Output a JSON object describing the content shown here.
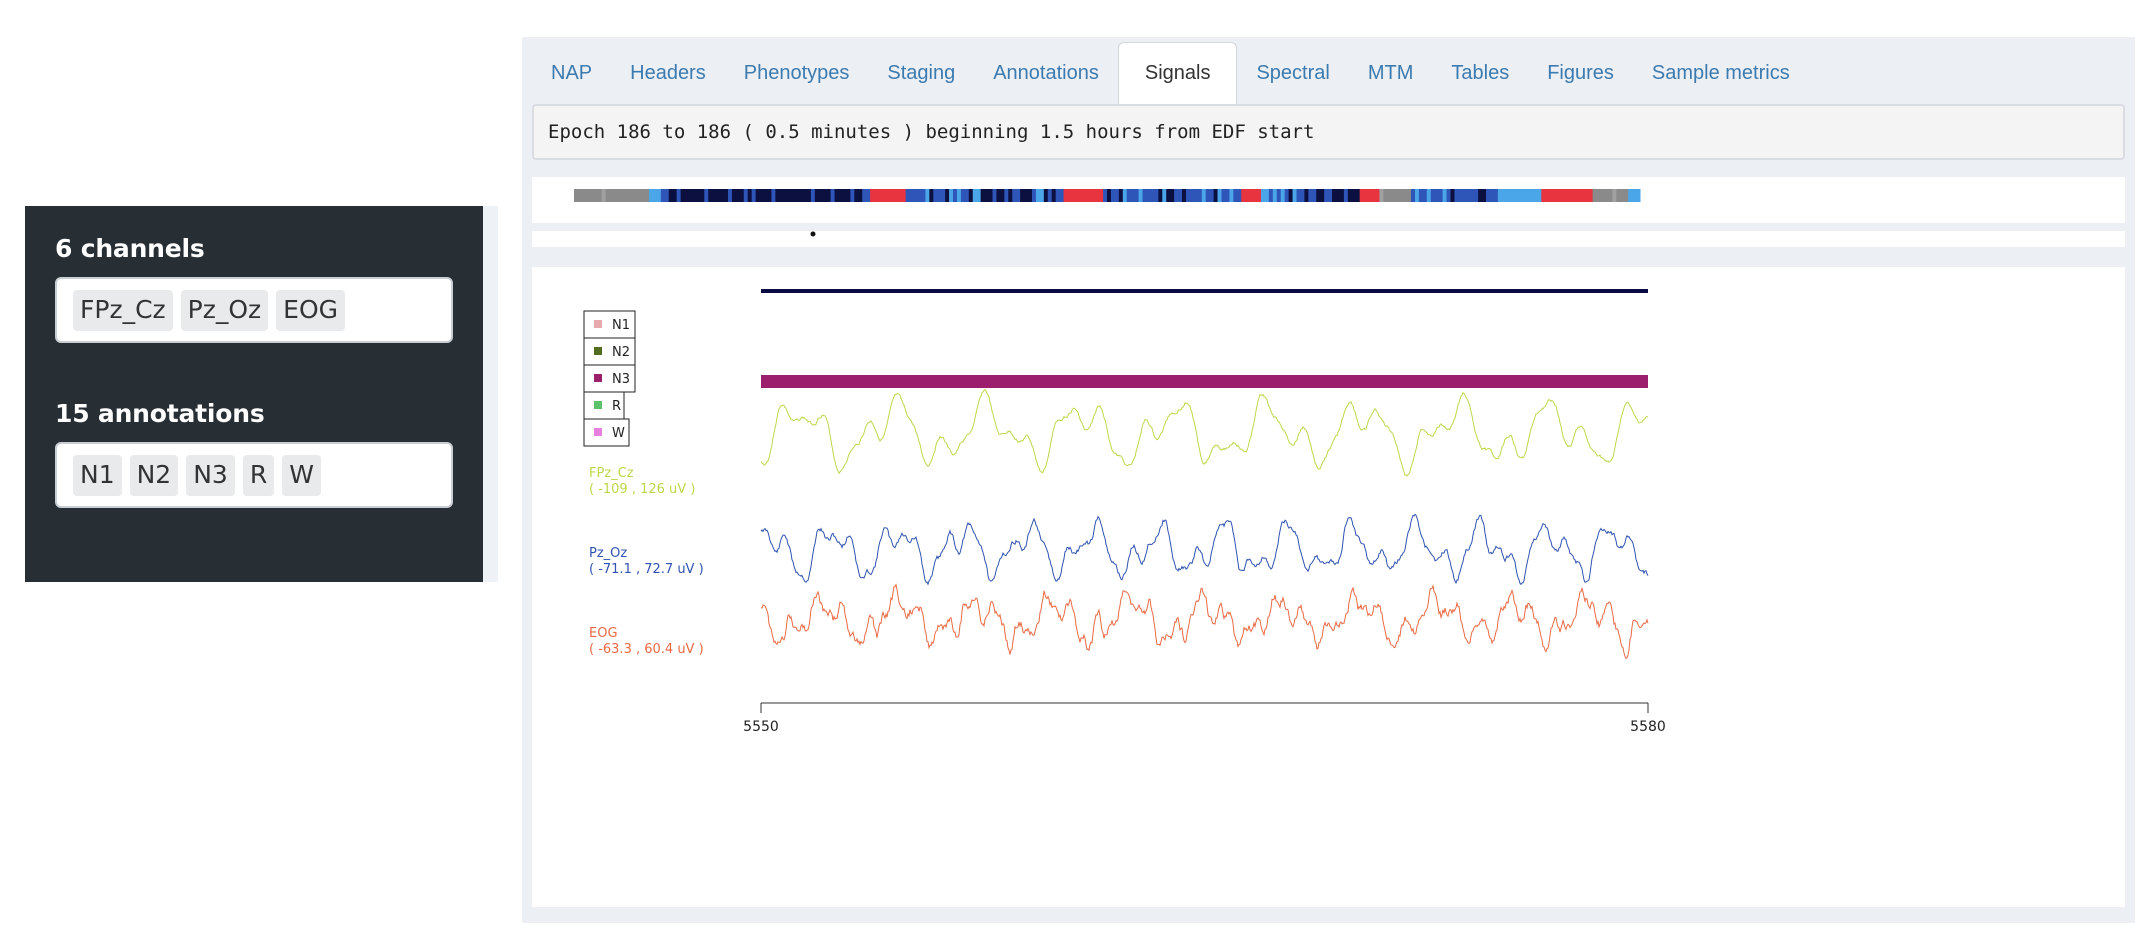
{
  "sidebar": {
    "channels_heading": "6 channels",
    "channels": [
      "FPz_Cz",
      "Pz_Oz",
      "EOG"
    ],
    "annotations_heading": "15 annotations",
    "annotations": [
      "N1",
      "N2",
      "N3",
      "R",
      "W"
    ]
  },
  "tabs": [
    {
      "label": "NAP",
      "active": false
    },
    {
      "label": "Headers",
      "active": false
    },
    {
      "label": "Phenotypes",
      "active": false
    },
    {
      "label": "Staging",
      "active": false
    },
    {
      "label": "Annotations",
      "active": false
    },
    {
      "label": "Signals",
      "active": true
    },
    {
      "label": "Spectral",
      "active": false
    },
    {
      "label": "MTM",
      "active": false
    },
    {
      "label": "Tables",
      "active": false
    },
    {
      "label": "Figures",
      "active": false
    },
    {
      "label": "Sample metrics",
      "active": false
    }
  ],
  "epoch_info": "Epoch 186 to 186 ( 0.5 minutes ) beginning 1.5 hours from EDF start",
  "chart_data": {
    "type": "line",
    "x_range": [
      5550,
      5580
    ],
    "x_ticks": [
      "5550",
      "5580"
    ],
    "legend": [
      {
        "name": "N1",
        "color": "#e8a9ae"
      },
      {
        "name": "N2",
        "color": "#556b1f"
      },
      {
        "name": "N3",
        "color": "#9c1f6e"
      },
      {
        "name": "R",
        "color": "#5cc26b"
      },
      {
        "name": "W",
        "color": "#e87ee0"
      }
    ],
    "hypnogram_colors": {
      "wake": "#8a8a8a",
      "deep": "#0b1040",
      "mid": "#2e55b8",
      "light": "#4aa6e8",
      "rem": "#e8343f"
    },
    "top_line_color": "#0a0a45",
    "stage_bar": {
      "stage": "N3",
      "color": "#9c1f6e"
    },
    "channels": [
      {
        "name": "FPz_Cz",
        "range_text": "( -109 , 126 uV )",
        "color": "#bcd84a"
      },
      {
        "name": "Pz_Oz",
        "range_text": "( -71.1 , 72.7 uV )",
        "color": "#2f53b0"
      },
      {
        "name": "EOG",
        "range_text": "( -63.3 , 60.4 uV )",
        "color": "#ea6a43"
      }
    ]
  }
}
